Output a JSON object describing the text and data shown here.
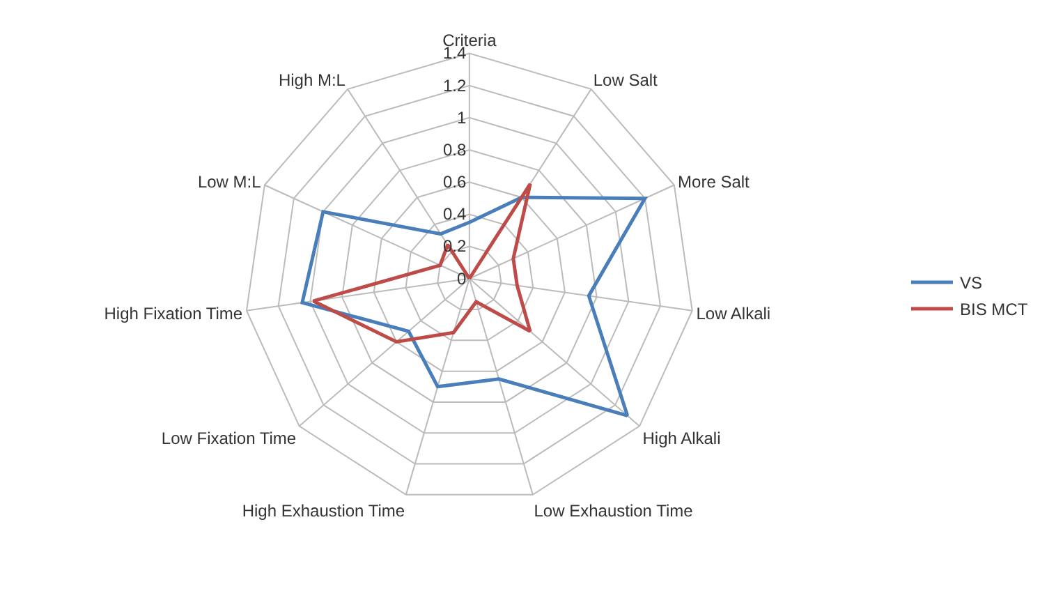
{
  "chart_data": {
    "type": "radar",
    "categories": [
      "Criteria",
      "Low Salt",
      "More Salt",
      "Low Alkali",
      "High Alkali",
      "Low Exhaustion Time",
      "High Exhaustion Time",
      "Low Fixation Time",
      "High Fixation Time",
      "Low M:L",
      "High M:L"
    ],
    "series": [
      {
        "name": "VS",
        "color": "#4a7ebb",
        "values": [
          0.35,
          0.6,
          1.2,
          0.75,
          1.3,
          0.65,
          0.7,
          0.5,
          1.05,
          1.0,
          0.33
        ]
      },
      {
        "name": "BIS MCT",
        "color": "#be4b48",
        "values": [
          0,
          0.7,
          0.3,
          0.3,
          0.5,
          0.15,
          0.35,
          0.6,
          0.98,
          0.2,
          0.25
        ]
      }
    ],
    "ylim": [
      0,
      1.4
    ],
    "yticks": [
      0,
      0.2,
      0.4,
      0.6,
      0.8,
      1,
      1.2,
      1.4
    ],
    "grid": true,
    "legend": "right",
    "marker": "none"
  }
}
